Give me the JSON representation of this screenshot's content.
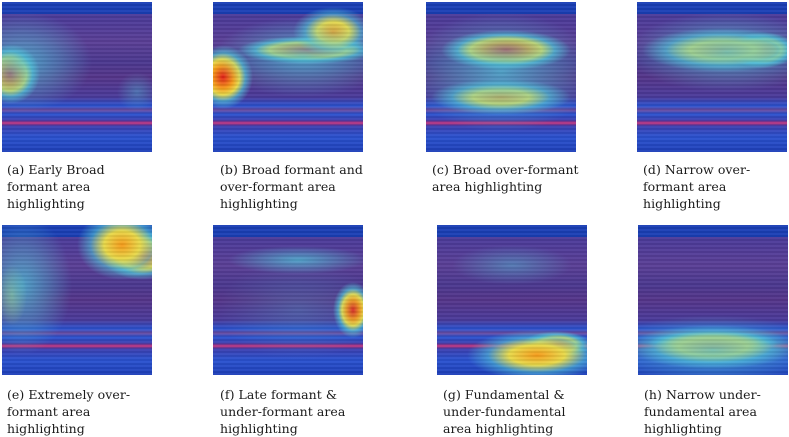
{
  "figure": {
    "panels": [
      {
        "id": "a",
        "caption": "(a) Early Broad formant area highlighting"
      },
      {
        "id": "b",
        "caption": "(b) Broad formant and over-formant area highlighting"
      },
      {
        "id": "c",
        "caption": "(c) Broad over-formant area highlighting"
      },
      {
        "id": "d",
        "caption": "(d) Narrow over-formant area highlighting"
      },
      {
        "id": "e",
        "caption": "(e) Extremely over-formant area highlighting"
      },
      {
        "id": "f",
        "caption": "(f) Late formant & under-formant area highlighting"
      },
      {
        "id": "g",
        "caption": "(g) Fundamental & under-fundamental area highlighting"
      },
      {
        "id": "h",
        "caption": "(h) Narrow under-fundamental area highlighting"
      }
    ],
    "colors": {
      "base": "#3a2e93",
      "top_band": "#1a3fb5",
      "hot_core": "#e0201a",
      "orange": "#f59a1a",
      "yellow": "#e8d94a",
      "cyan": "#4fc3d9",
      "bottom_blue": "#2a52d0",
      "magenta_line": "#c0307a"
    }
  }
}
